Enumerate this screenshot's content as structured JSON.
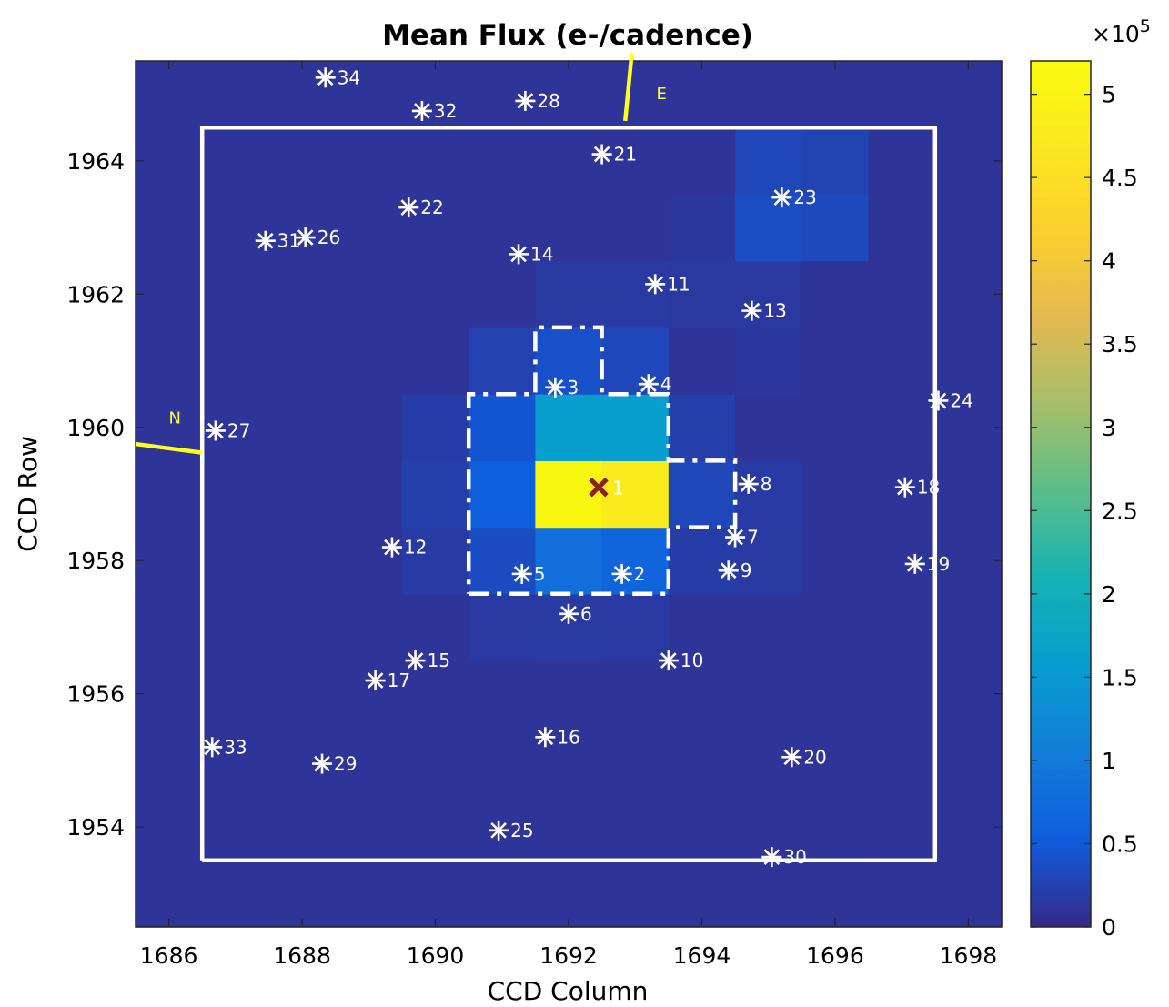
{
  "chart_data": {
    "type": "heatmap",
    "title": "Mean Flux (e-/cadence)",
    "xlabel": "CCD Column",
    "ylabel": "CCD Row",
    "xlim": [
      1685.5,
      1698.5
    ],
    "ylim": [
      1952.5,
      1965.5
    ],
    "xticks": [
      1686,
      1688,
      1690,
      1692,
      1694,
      1696,
      1698
    ],
    "yticks": [
      1954,
      1956,
      1958,
      1960,
      1962,
      1964
    ],
    "colorbar": {
      "range": [
        0,
        520000
      ],
      "ticks": [
        0,
        0.5,
        1,
        1.5,
        2,
        2.5,
        3,
        3.5,
        4,
        4.5,
        5
      ],
      "tick_labels": [
        "0",
        "0.5",
        "1",
        "1.5",
        "2",
        "2.5",
        "3",
        "3.5",
        "4",
        "4.5",
        "5"
      ],
      "exponent_label": "×10",
      "exponent": "5",
      "colormap": "parula"
    },
    "background_flux": 10000,
    "pixels": [
      {
        "col": 1692,
        "row": 1959,
        "flux": 510000
      },
      {
        "col": 1693,
        "row": 1959,
        "flux": 480000
      },
      {
        "col": 1692,
        "row": 1960,
        "flux": 160000
      },
      {
        "col": 1693,
        "row": 1960,
        "flux": 160000
      },
      {
        "col": 1692,
        "row": 1958,
        "flux": 80000
      },
      {
        "col": 1693,
        "row": 1958,
        "flux": 65000
      },
      {
        "col": 1691,
        "row": 1960,
        "flux": 45000
      },
      {
        "col": 1691,
        "row": 1959,
        "flux": 55000
      },
      {
        "col": 1691,
        "row": 1958,
        "flux": 35000
      },
      {
        "col": 1692,
        "row": 1961,
        "flux": 40000
      },
      {
        "col": 1691,
        "row": 1961,
        "flux": 25000
      },
      {
        "col": 1693,
        "row": 1961,
        "flux": 30000
      },
      {
        "col": 1694,
        "row": 1959,
        "flux": 30000
      },
      {
        "col": 1694,
        "row": 1960,
        "flux": 22000
      },
      {
        "col": 1694,
        "row": 1958,
        "flux": 20000
      },
      {
        "col": 1690,
        "row": 1959,
        "flux": 22000
      },
      {
        "col": 1690,
        "row": 1960,
        "flux": 20000
      },
      {
        "col": 1690,
        "row": 1958,
        "flux": 18000
      },
      {
        "col": 1695,
        "row": 1959,
        "flux": 18000
      },
      {
        "col": 1695,
        "row": 1958,
        "flux": 17000
      },
      {
        "col": 1692,
        "row": 1957,
        "flux": 17000
      },
      {
        "col": 1693,
        "row": 1957,
        "flux": 16000
      },
      {
        "col": 1691,
        "row": 1957,
        "flux": 16000
      },
      {
        "col": 1692,
        "row": 1962,
        "flux": 17000
      },
      {
        "col": 1693,
        "row": 1962,
        "flux": 17000
      },
      {
        "col": 1694,
        "row": 1962,
        "flux": 15000
      },
      {
        "col": 1695,
        "row": 1962,
        "flux": 15000
      },
      {
        "col": 1695,
        "row": 1961,
        "flux": 14000
      },
      {
        "col": 1694,
        "row": 1963,
        "flux": 13000
      },
      {
        "col": 1695,
        "row": 1963,
        "flux": 36000
      },
      {
        "col": 1696,
        "row": 1963,
        "flux": 32000
      },
      {
        "col": 1695,
        "row": 1964,
        "flux": 30000
      },
      {
        "col": 1696,
        "row": 1964,
        "flux": 26000
      }
    ],
    "aperture_boundary": [
      [
        1686.5,
        1953.5
      ],
      [
        1697.5,
        1953.5
      ],
      [
        1697.5,
        1964.5
      ],
      [
        1686.5,
        1964.5
      ],
      [
        1686.5,
        1953.5
      ]
    ],
    "optimal_aperture": [
      [
        1690.5,
        1957.5
      ],
      [
        1693.5,
        1957.5
      ],
      [
        1693.5,
        1958.5
      ],
      [
        1694.5,
        1958.5
      ],
      [
        1694.5,
        1959.5
      ],
      [
        1693.5,
        1959.5
      ],
      [
        1693.5,
        1960.5
      ],
      [
        1692.5,
        1960.5
      ],
      [
        1692.5,
        1961.5
      ],
      [
        1691.5,
        1961.5
      ],
      [
        1691.5,
        1960.5
      ],
      [
        1690.5,
        1960.5
      ],
      [
        1690.5,
        1957.5
      ]
    ],
    "target": {
      "label": "1",
      "x": 1692.45,
      "y": 1959.1
    },
    "stars": [
      {
        "label": "2",
        "x": 1692.8,
        "y": 1957.8
      },
      {
        "label": "3",
        "x": 1691.8,
        "y": 1960.6
      },
      {
        "label": "4",
        "x": 1693.2,
        "y": 1960.65
      },
      {
        "label": "5",
        "x": 1691.3,
        "y": 1957.8
      },
      {
        "label": "6",
        "x": 1692.0,
        "y": 1957.2
      },
      {
        "label": "7",
        "x": 1694.5,
        "y": 1958.35
      },
      {
        "label": "8",
        "x": 1694.7,
        "y": 1959.15
      },
      {
        "label": "9",
        "x": 1694.4,
        "y": 1957.85
      },
      {
        "label": "10",
        "x": 1693.5,
        "y": 1956.5
      },
      {
        "label": "11",
        "x": 1693.3,
        "y": 1962.15
      },
      {
        "label": "12",
        "x": 1689.35,
        "y": 1958.2
      },
      {
        "label": "13",
        "x": 1694.75,
        "y": 1961.75
      },
      {
        "label": "14",
        "x": 1691.25,
        "y": 1962.6
      },
      {
        "label": "15",
        "x": 1689.7,
        "y": 1956.5
      },
      {
        "label": "16",
        "x": 1691.65,
        "y": 1955.35
      },
      {
        "label": "17",
        "x": 1689.1,
        "y": 1956.2
      },
      {
        "label": "18",
        "x": 1697.05,
        "y": 1959.1
      },
      {
        "label": "19",
        "x": 1697.2,
        "y": 1957.95
      },
      {
        "label": "20",
        "x": 1695.35,
        "y": 1955.05
      },
      {
        "label": "21",
        "x": 1692.5,
        "y": 1964.1
      },
      {
        "label": "22",
        "x": 1689.6,
        "y": 1963.3
      },
      {
        "label": "23",
        "x": 1695.2,
        "y": 1963.45
      },
      {
        "label": "24",
        "x": 1697.55,
        "y": 1960.4
      },
      {
        "label": "25",
        "x": 1690.95,
        "y": 1953.95
      },
      {
        "label": "26",
        "x": 1688.05,
        "y": 1962.85
      },
      {
        "label": "27",
        "x": 1686.7,
        "y": 1959.95
      },
      {
        "label": "28",
        "x": 1691.35,
        "y": 1964.9
      },
      {
        "label": "29",
        "x": 1688.3,
        "y": 1954.95
      },
      {
        "label": "30",
        "x": 1695.05,
        "y": 1953.55
      },
      {
        "label": "31",
        "x": 1687.45,
        "y": 1962.8
      },
      {
        "label": "32",
        "x": 1689.8,
        "y": 1964.75
      },
      {
        "label": "33",
        "x": 1686.65,
        "y": 1955.2
      },
      {
        "label": "34",
        "x": 1688.35,
        "y": 1965.25
      }
    ],
    "compass": {
      "north_label": "N",
      "east_label": "E",
      "north_line": [
        [
          1685.5,
          1959.75
        ],
        [
          1686.5,
          1959.62
        ]
      ],
      "east_line": [
        [
          1692.95,
          1965.65
        ],
        [
          1692.85,
          1964.6
        ]
      ]
    }
  }
}
